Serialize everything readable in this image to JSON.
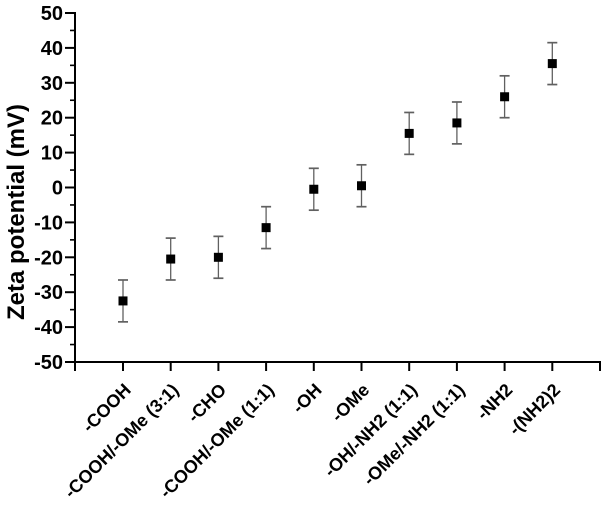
{
  "chart_data": {
    "type": "scatter",
    "title": "",
    "ylabel": "Zeta potential (mV)",
    "xlabel": "",
    "ylim": [
      -50,
      50
    ],
    "ytick_major_step": 10,
    "ytick_minor_step": 5,
    "grid": false,
    "legend": "none",
    "categories": [
      "-COOH",
      "-COOH/-OMe (3:1)",
      "-CHO",
      "-COOH/-OMe (1:1)",
      "-OH",
      "-OMe",
      "-OH/-NH2 (1:1)",
      "-OMe/-NH2 (1:1)",
      "-NH2",
      "-(NH2)2"
    ],
    "series": [
      {
        "name": "Zeta potential",
        "values": [
          -32.5,
          -20.5,
          -20,
          -11.5,
          -0.5,
          0.5,
          15.5,
          18.5,
          26,
          35.5
        ],
        "errors": [
          6,
          6,
          6,
          6,
          6,
          6,
          6,
          6,
          6,
          6
        ]
      }
    ],
    "marker": "filled-square",
    "marker_size_px": 9,
    "colors": {
      "marker": "#000000",
      "error_bar": "#606060",
      "axis": "#000000",
      "text": "#000000",
      "background": "#ffffff"
    }
  }
}
